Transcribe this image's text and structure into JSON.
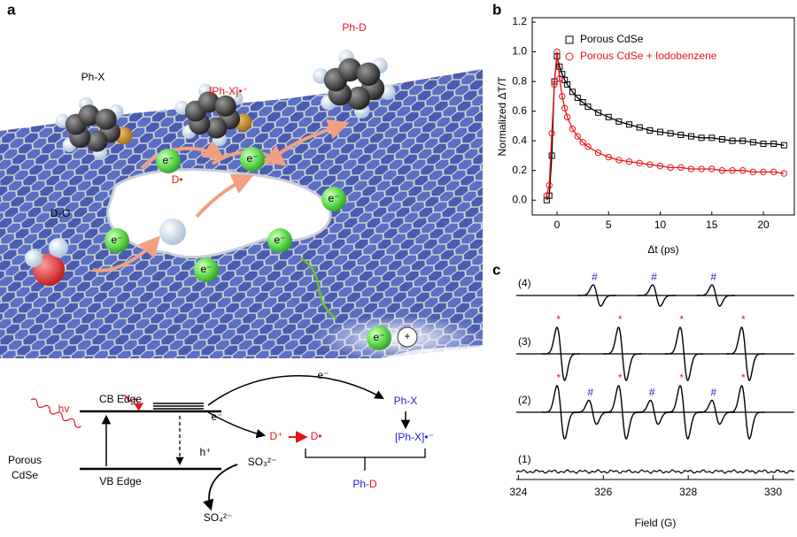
{
  "panel_labels": {
    "a": "a",
    "b": "b",
    "c": "c"
  },
  "illustration": {
    "ph_x": "Ph-X",
    "radical": "[Ph-X]•⁻",
    "ph_d": "Ph-D",
    "d2o": "D₂O",
    "d_radical": "D•",
    "electrons": [
      "e⁻",
      "e⁻",
      "e⁻",
      "e⁻",
      "e⁻",
      "e⁻",
      "e⁻"
    ],
    "hole": "+"
  },
  "scheme": {
    "cb_edge": "CB Edge",
    "vb_edge": "VB Edge",
    "hv": "hv",
    "material": [
      "Porous",
      "CdSe"
    ],
    "e_transfer": "e⁻",
    "e_reduction": "e⁻",
    "h_plus": "h⁺",
    "sulfite": "SO₃²⁻",
    "sulfate": "SO₄²⁻",
    "ph_x": "Ph-X",
    "radical": "[Ph-X]•⁻",
    "d_plus": "D⁺",
    "d_radical": "D•",
    "ph_d": [
      "Ph-",
      "D"
    ]
  },
  "chart_data": [
    {
      "type": "scatter",
      "xlabel": "Δt (ps)",
      "ylabel": "Normalized ΔT/T",
      "x": [
        -1,
        -0.75,
        -0.5,
        -0.25,
        0,
        0.25,
        0.5,
        0.75,
        1,
        1.5,
        2,
        2.5,
        3,
        4,
        5,
        6,
        7,
        8,
        9,
        10,
        11,
        12,
        13,
        14,
        15,
        16,
        17,
        18,
        19,
        20,
        21,
        22
      ],
      "series": [
        {
          "name": "Porous CdSe",
          "color": "#000000",
          "marker": "square",
          "values": [
            0.0,
            0.03,
            0.3,
            0.8,
            0.97,
            0.9,
            0.85,
            0.81,
            0.78,
            0.73,
            0.69,
            0.66,
            0.63,
            0.59,
            0.56,
            0.53,
            0.51,
            0.49,
            0.47,
            0.46,
            0.45,
            0.44,
            0.43,
            0.42,
            0.42,
            0.41,
            0.4,
            0.4,
            0.39,
            0.38,
            0.38,
            0.37
          ]
        },
        {
          "name": "Porous CdSe + Iodobenzene",
          "color": "#e8141b",
          "marker": "circle",
          "values": [
            0.03,
            0.1,
            0.45,
            0.78,
            1.0,
            0.82,
            0.7,
            0.62,
            0.56,
            0.48,
            0.43,
            0.39,
            0.36,
            0.32,
            0.29,
            0.27,
            0.26,
            0.25,
            0.24,
            0.23,
            0.22,
            0.22,
            0.21,
            0.21,
            0.21,
            0.2,
            0.2,
            0.2,
            0.19,
            0.19,
            0.19,
            0.18
          ]
        }
      ],
      "xlim": [
        -2.4,
        23
      ],
      "ylim": [
        -0.1,
        1.23
      ],
      "xticks": [
        0,
        5,
        10,
        15,
        20
      ],
      "yticks": [
        {
          "value": 0,
          "label": "0.0"
        },
        0.2,
        0.4,
        0.6,
        0.8,
        {
          "value": 1,
          "label": "1.0"
        },
        1.2
      ],
      "legend": "upper right"
    },
    {
      "type": "spectra",
      "xlabel": "Field (G)",
      "xlim": [
        323.95,
        330.5
      ],
      "xticks": [
        324,
        326,
        328,
        330
      ],
      "mark_colors": {
        "#": "#2222cc",
        "*": "#e8141b"
      },
      "series": [
        {
          "name": "(4)",
          "peak_fields": [
            325.85,
            327.25,
            328.65
          ],
          "amplitudes": [
            0.4,
            0.4,
            0.4
          ],
          "peak_marks": [
            "#",
            "#",
            "#"
          ]
        },
        {
          "name": "(3)",
          "peak_fields": [
            325.0,
            326.45,
            327.9,
            329.35
          ],
          "amplitudes": [
            1.0,
            1.0,
            1.0,
            1.0
          ],
          "peak_marks": [
            "*",
            "*",
            "*",
            "*"
          ]
        },
        {
          "name": "(2)",
          "peak_fields": [
            325.0,
            325.75,
            326.45,
            327.2,
            327.9,
            328.65,
            329.35
          ],
          "amplitudes": [
            1.0,
            0.45,
            1.0,
            0.45,
            1.0,
            0.45,
            1.0
          ],
          "peak_marks": [
            "*",
            "#",
            "*",
            "#",
            "*",
            "#",
            "*"
          ]
        },
        {
          "name": "(1)",
          "peak_fields": [],
          "amplitudes": [],
          "peak_marks": []
        }
      ]
    }
  ]
}
